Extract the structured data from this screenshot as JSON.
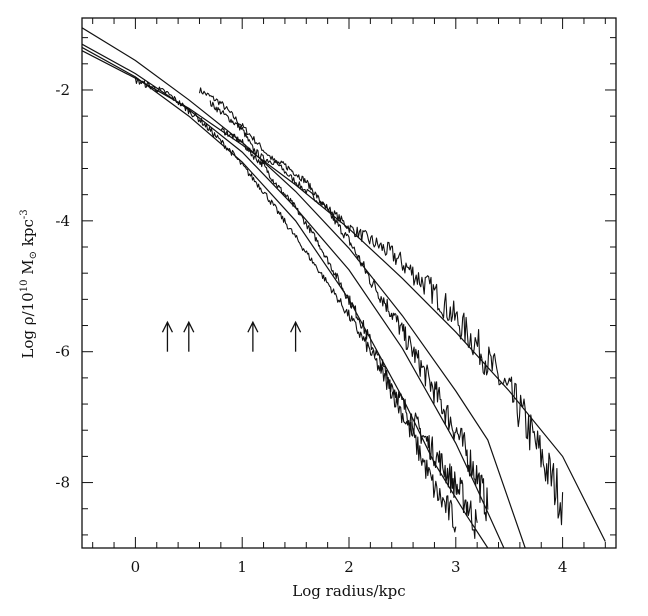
{
  "chart_data": {
    "type": "line",
    "title": "",
    "xlabel": "Log radius/kpc",
    "ylabel": {
      "prefix": "Log ρ/10",
      "exp": "10",
      "mid": " M",
      "sub": "⊙",
      "suffix": " kpc",
      "exp2": "-3"
    },
    "xlim": [
      -0.5,
      4.5
    ],
    "ylim": [
      -9.0,
      -0.9
    ],
    "x_ticks": [
      0,
      1,
      2,
      3,
      4
    ],
    "x_tick_labels": [
      "0",
      "1",
      "2",
      "3",
      "4"
    ],
    "y_ticks": [
      -2,
      -4,
      -6,
      -8
    ],
    "y_tick_labels": [
      "-2",
      "-4",
      "-6",
      "-8"
    ],
    "grid": false,
    "series": [
      {
        "model": {
          "x": [
            -0.5,
            0.0,
            0.5,
            1.0,
            1.5,
            2.0,
            2.5,
            3.0,
            3.5,
            4.0,
            4.4
          ],
          "y": [
            -1.4,
            -1.82,
            -2.28,
            -2.84,
            -3.45,
            -4.12,
            -4.88,
            -5.7,
            -6.6,
            -7.6,
            -8.9
          ]
        },
        "data": {
          "x": [
            0.6,
            0.8,
            1.0,
            1.2,
            1.4,
            1.6,
            1.8,
            2.0,
            2.2,
            2.4,
            2.6,
            2.8,
            3.0,
            3.2,
            3.4,
            3.6,
            3.8,
            4.0
          ],
          "y": [
            -2.0,
            -2.2,
            -2.55,
            -2.92,
            -3.25,
            -3.55,
            -3.8,
            -4.1,
            -4.3,
            -4.5,
            -4.8,
            -5.1,
            -5.5,
            -5.9,
            -6.4,
            -6.9,
            -7.6,
            -8.3
          ]
        }
      },
      {
        "model": {
          "x": [
            -0.5,
            0.0,
            0.5,
            1.0,
            1.5,
            2.0,
            2.5,
            3.0,
            3.3,
            3.65
          ],
          "y": [
            -1.05,
            -1.55,
            -2.15,
            -2.8,
            -3.55,
            -4.42,
            -5.45,
            -6.6,
            -7.35,
            -9.0
          ]
        },
        "data": {
          "x": [
            0.7,
            0.85,
            1.0,
            1.1,
            1.2,
            1.4,
            1.6,
            1.8,
            2.0,
            2.2,
            2.4,
            2.6,
            2.8,
            3.0,
            3.2,
            3.3
          ],
          "y": [
            -2.2,
            -2.4,
            -2.6,
            -2.9,
            -3.05,
            -3.15,
            -3.4,
            -3.85,
            -4.3,
            -4.9,
            -5.4,
            -6.0,
            -6.6,
            -7.2,
            -7.9,
            -8.4
          ]
        }
      },
      {
        "model": {
          "x": [
            -0.5,
            0.0,
            0.5,
            1.0,
            1.5,
            2.0,
            2.5,
            3.0,
            3.2,
            3.45
          ],
          "y": [
            -1.3,
            -1.75,
            -2.3,
            -2.95,
            -3.8,
            -4.75,
            -5.95,
            -7.4,
            -8.1,
            -9.0
          ]
        },
        "data": {
          "x": [
            0.8,
            1.0,
            1.1,
            1.2,
            1.3,
            1.5,
            1.7,
            1.9,
            2.1,
            2.3,
            2.5,
            2.7,
            2.9,
            3.1,
            3.2
          ],
          "y": [
            -2.6,
            -2.8,
            -3.0,
            -3.15,
            -3.4,
            -3.8,
            -4.3,
            -4.9,
            -5.5,
            -6.2,
            -6.8,
            -7.3,
            -7.8,
            -8.3,
            -8.7
          ]
        }
      },
      {
        "model": {
          "x": [
            -0.5,
            0.0,
            0.5,
            1.0,
            1.5,
            2.0,
            2.5,
            2.8,
            3.1,
            3.3
          ],
          "y": [
            -1.35,
            -1.8,
            -2.4,
            -3.1,
            -4.0,
            -5.2,
            -6.7,
            -7.7,
            -8.5,
            -9.0
          ]
        },
        "data": {
          "x": [
            0.0,
            0.3,
            0.6,
            0.9,
            1.2,
            1.5,
            1.8,
            2.0,
            2.2,
            2.4,
            2.6,
            2.8,
            3.0
          ],
          "y": [
            -1.85,
            -2.05,
            -2.45,
            -2.95,
            -3.55,
            -4.25,
            -4.95,
            -5.45,
            -6.0,
            -6.6,
            -7.3,
            -8.1,
            -8.6
          ]
        }
      }
    ],
    "arrows_at_x": [
      0.3,
      0.5,
      1.1,
      1.5
    ],
    "colors": {
      "line": "#111111",
      "frame": "#111111",
      "background": "#ffffff"
    }
  }
}
